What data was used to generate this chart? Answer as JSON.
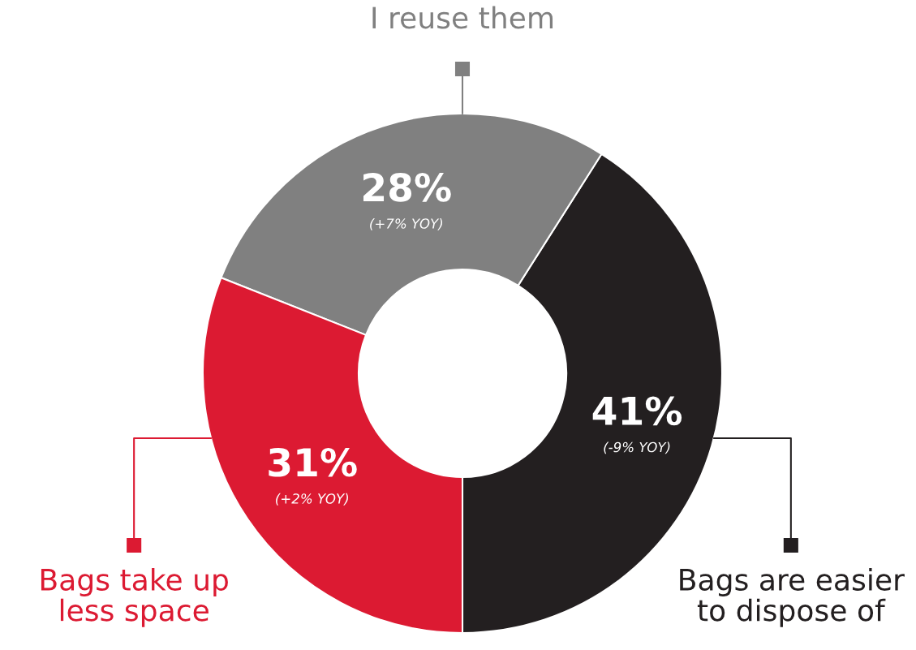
{
  "chart_data": {
    "type": "donut",
    "categories": [
      "Bags are easier to dispose of",
      "I reuse them",
      "Bags take up less space"
    ],
    "values": [
      41,
      28,
      31
    ],
    "colors": [
      "#231f20",
      "#808080",
      "#dc1a32"
    ],
    "value_labels": [
      "41%",
      "28%",
      "31%"
    ],
    "annotations": [
      {
        "text": "(-9% YOY)",
        "x": "Bags are easier to dispose of"
      },
      {
        "text": "(+7% YOY)",
        "x": "I reuse them"
      },
      {
        "text": "(+2% YOY)",
        "x": "Bags take up less space"
      }
    ],
    "legend": "bottom"
  }
}
